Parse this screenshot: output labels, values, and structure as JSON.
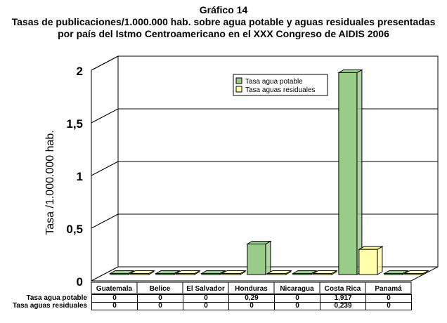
{
  "titles": {
    "line1": "Gráfico 14",
    "line2": "Tasas de publicaciones/1.000.000 hab. sobre agua potable y aguas residuales presentadas",
    "line3": "por país del Istmo Centroamericano en el XXX Congreso de AIDIS 2006"
  },
  "chart_data": {
    "type": "bar",
    "categories": [
      "Guatemala",
      "Belice",
      "El Salvador",
      "Honduras",
      "Nicaragua",
      "Costa Rica",
      "Panamá"
    ],
    "series": [
      {
        "name": "Tasa agua potable",
        "values": [
          0,
          0,
          0,
          0.29,
          0,
          1.917,
          0
        ],
        "color": "#99cc88",
        "labels": [
          "0",
          "0",
          "0",
          "0,29",
          "0",
          "1,917",
          "0"
        ]
      },
      {
        "name": "Tasa aguas residuales",
        "values": [
          0,
          0,
          0,
          0,
          0,
          0.239,
          0
        ],
        "color": "#ffffaa",
        "labels": [
          "0",
          "0",
          "0",
          "0",
          "0",
          "0,239",
          "0"
        ]
      }
    ],
    "ylabel": "Tasa /1.000.000 hab.",
    "ylim": [
      0,
      2
    ],
    "yticks": [
      0,
      0.5,
      1,
      1.5,
      2
    ],
    "ytick_labels": [
      "0",
      "0,5",
      "1",
      "1,5",
      "2"
    ],
    "grid": true,
    "legend_position": "top-right"
  }
}
